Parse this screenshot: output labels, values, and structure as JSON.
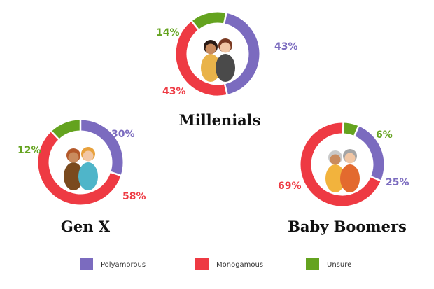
{
  "colors": {
    "polyamorous": "#7b6bbf",
    "monogamous": "#ee3a43",
    "unsure": "#64a31f"
  },
  "legend": [
    {
      "key": "polyamorous",
      "label": "Polyamorous"
    },
    {
      "key": "monogamous",
      "label": "Monogamous"
    },
    {
      "key": "unsure",
      "label": "Unsure"
    }
  ],
  "chart_data": [
    {
      "type": "pie",
      "title": "Millenials",
      "categories": [
        "Polyamorous",
        "Monogamous",
        "Unsure"
      ],
      "values": [
        43,
        43,
        14
      ],
      "labels": [
        "43%",
        "43%",
        "14%"
      ]
    },
    {
      "type": "pie",
      "title": "Gen X",
      "categories": [
        "Polyamorous",
        "Monogamous",
        "Unsure"
      ],
      "values": [
        30,
        58,
        12
      ],
      "labels": [
        "30%",
        "58%",
        "12%"
      ]
    },
    {
      "type": "pie",
      "title": "Baby Boomers",
      "categories": [
        "Polyamorous",
        "Monogamous",
        "Unsure"
      ],
      "values": [
        25,
        69,
        6
      ],
      "labels": [
        "25%",
        "69%",
        "6%"
      ]
    }
  ]
}
